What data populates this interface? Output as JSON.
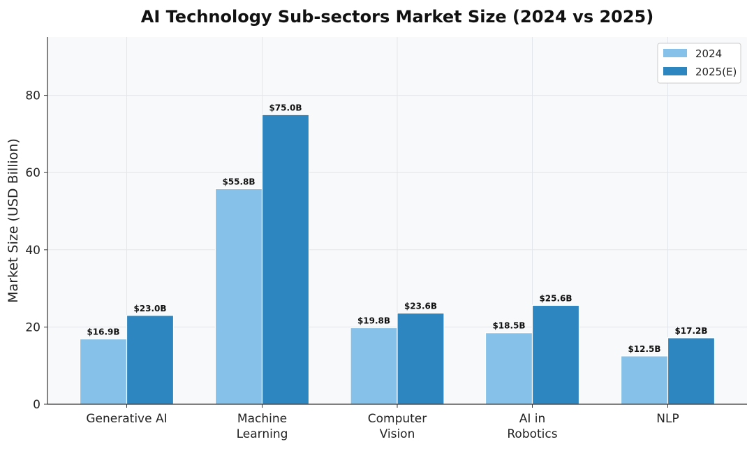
{
  "chart_data": {
    "type": "bar",
    "title": "AI Technology Sub-sectors Market Size (2024 vs 2025)",
    "xlabel": "",
    "ylabel": "Market Size (USD Billion)",
    "ylim": [
      0,
      95
    ],
    "yticks": [
      0,
      20,
      40,
      60,
      80
    ],
    "grid": true,
    "legend_position": "top-right",
    "categories": [
      [
        "Generative AI"
      ],
      [
        "Machine",
        "Learning"
      ],
      [
        "Computer",
        "Vision"
      ],
      [
        "AI in",
        "Robotics"
      ],
      [
        "NLP"
      ]
    ],
    "series": [
      {
        "name": "2024",
        "color": "#85c1e9",
        "values": [
          16.9,
          55.8,
          19.8,
          18.5,
          12.5
        ],
        "labels": [
          "$16.9B",
          "$55.8B",
          "$19.8B",
          "$18.5B",
          "$12.5B"
        ]
      },
      {
        "name": "2025(E)",
        "color": "#2e86c1",
        "values": [
          23.0,
          75.0,
          23.6,
          25.6,
          17.2
        ],
        "labels": [
          "$23.0B",
          "$75.0B",
          "$23.6B",
          "$25.6B",
          "$17.2B"
        ]
      }
    ]
  }
}
